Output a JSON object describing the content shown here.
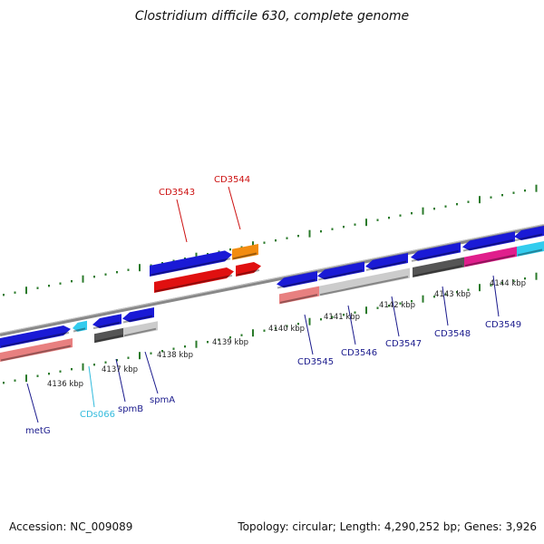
{
  "title": "Clostridium difficile 630, complete genome",
  "footer": {
    "accession": "Accession: NC_009089",
    "summary": "Topology: circular; Length: 4,290,252 bp; Genes: 3,926"
  },
  "colors": {
    "blue": "#1a1ad6",
    "cyan": "#33ccee",
    "red": "#e01010",
    "salmon": "#e88080",
    "orange": "#f28c10",
    "dark_gray": "#555555",
    "light_gray": "#cccccc",
    "magenta": "#e01e8c",
    "backbone": "#888888",
    "tick": "#2a7a2a"
  },
  "ruler": {
    "labels": [
      "4136 kbp",
      "4137 kbp",
      "4138 kbp",
      "4139 kbp",
      "4140 kbp",
      "4141 kbp",
      "4142 kbp",
      "4143 kbp",
      "4144 kbp"
    ]
  },
  "features": [
    {
      "name": "metG",
      "color": "blue"
    },
    {
      "name": "CDs066",
      "color": "cyan"
    },
    {
      "name": "spmB",
      "color": "blue"
    },
    {
      "name": "spmA",
      "color": "blue"
    },
    {
      "name": "CD3543",
      "color": "red"
    },
    {
      "name": "CD3544",
      "color": "red"
    },
    {
      "name": "CD3545",
      "color": "blue"
    },
    {
      "name": "CD3546",
      "color": "blue"
    },
    {
      "name": "CD3547",
      "color": "blue"
    },
    {
      "name": "CD3548",
      "color": "blue"
    },
    {
      "name": "CD3549",
      "color": "blue"
    }
  ]
}
